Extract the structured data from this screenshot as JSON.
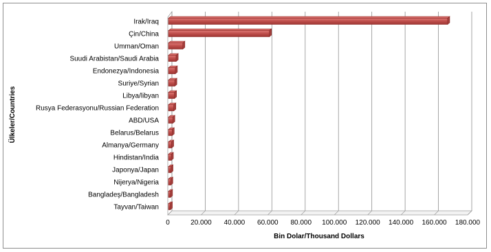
{
  "chart_data": {
    "type": "bar",
    "orientation": "horizontal",
    "categories": [
      "Irak/Iraq",
      "Çin/China",
      "Umman/Oman",
      "Suudi Arabistan/Saudi Arabia",
      "Endonezya/Indonesia",
      "Suriye/Syrian",
      "Libya/libyan",
      "Rusya Federasyonu/Russian Federation",
      "ABD/USA",
      "Belarus/Belarus",
      "Almanya/Germany",
      "Hindistan/India",
      "Japonya/Japan",
      "Nijerya/Nigeria",
      "Bangladeş/Bangladesh",
      "Tayvan/Taiwan"
    ],
    "values": [
      168000,
      61000,
      9000,
      5000,
      4500,
      4200,
      4000,
      3600,
      3000,
      2600,
      2300,
      2100,
      1900,
      1800,
      1600,
      1500
    ],
    "xlabel": "Bin Dolar/Thousand Dollars",
    "ylabel": "Ülkeler/Countries",
    "xlim": [
      0,
      180000
    ],
    "xticks": [
      "0",
      "20.000",
      "40.000",
      "60.000",
      "80.000",
      "100.000",
      "120.000",
      "140.000",
      "160.000",
      "180.000"
    ],
    "grid": true,
    "bar_color": "#c0504d",
    "bar_edge_color": "#8b2a27"
  }
}
